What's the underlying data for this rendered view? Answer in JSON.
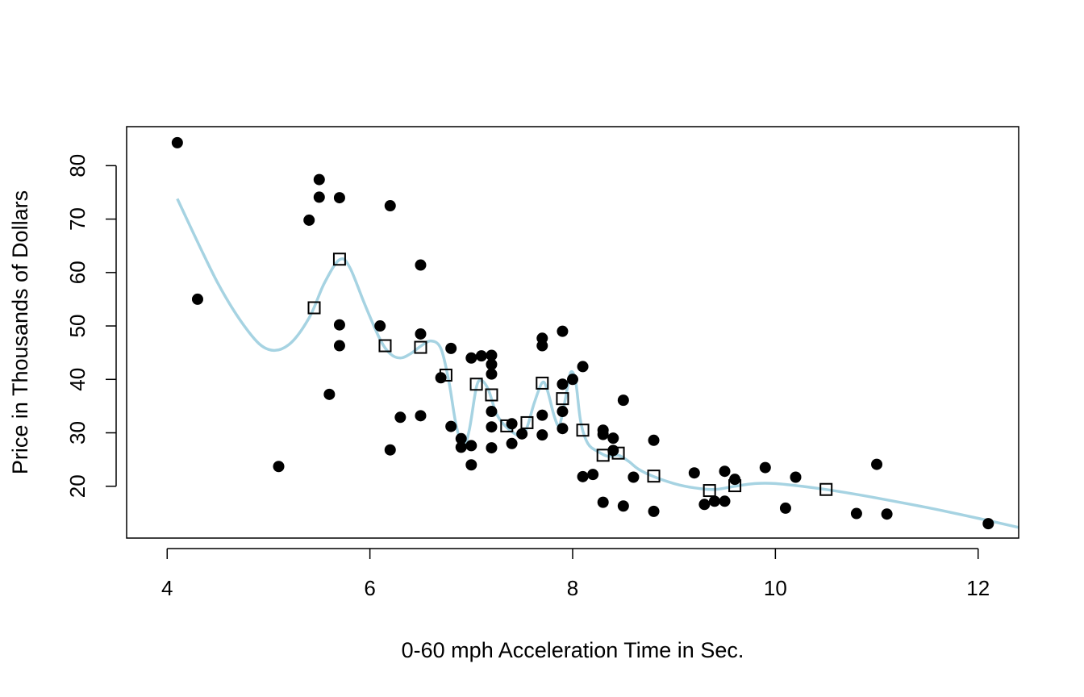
{
  "chart_data": {
    "type": "scatter",
    "xlabel": "0-60 mph Acceleration Time in Sec.",
    "ylabel": "Price in Thousands of Dollars",
    "xlim": [
      3.6,
      12.4
    ],
    "ylim": [
      10.3,
      87.3
    ],
    "x_ticks": [
      4,
      6,
      8,
      10,
      12
    ],
    "y_ticks": [
      20,
      30,
      40,
      50,
      60,
      70,
      80
    ],
    "grid": false,
    "colors": {
      "points": "#000000",
      "curve": "#a6d3e2",
      "box": "#000000"
    },
    "series": [
      {
        "marker": "filled-circle",
        "points": [
          [
            4.1,
            84.3
          ],
          [
            4.3,
            55.0
          ],
          [
            5.1,
            23.7
          ],
          [
            5.4,
            69.8
          ],
          [
            5.5,
            77.4
          ],
          [
            5.5,
            74.1
          ],
          [
            5.6,
            37.2
          ],
          [
            5.7,
            74.0
          ],
          [
            5.7,
            50.2
          ],
          [
            5.7,
            46.3
          ],
          [
            6.1,
            50.0
          ],
          [
            6.2,
            72.5
          ],
          [
            6.2,
            26.8
          ],
          [
            6.3,
            32.9
          ],
          [
            6.5,
            61.4
          ],
          [
            6.5,
            48.5
          ],
          [
            6.5,
            33.2
          ],
          [
            6.7,
            40.3
          ],
          [
            6.8,
            45.8
          ],
          [
            6.8,
            31.2
          ],
          [
            6.9,
            28.9
          ],
          [
            6.9,
            27.3
          ],
          [
            7.0,
            44.0
          ],
          [
            7.0,
            27.6
          ],
          [
            7.0,
            24.0
          ],
          [
            7.1,
            44.4
          ],
          [
            7.2,
            44.5
          ],
          [
            7.2,
            42.8
          ],
          [
            7.2,
            41.0
          ],
          [
            7.2,
            34.0
          ],
          [
            7.2,
            31.1
          ],
          [
            7.2,
            27.2
          ],
          [
            7.4,
            31.7
          ],
          [
            7.4,
            28.0
          ],
          [
            7.5,
            29.8
          ],
          [
            7.7,
            47.7
          ],
          [
            7.7,
            46.3
          ],
          [
            7.7,
            33.3
          ],
          [
            7.7,
            29.6
          ],
          [
            7.9,
            49.0
          ],
          [
            7.9,
            39.1
          ],
          [
            7.9,
            34.0
          ],
          [
            7.9,
            30.8
          ],
          [
            8.0,
            40.0
          ],
          [
            8.1,
            42.4
          ],
          [
            8.1,
            21.8
          ],
          [
            8.2,
            22.2
          ],
          [
            8.3,
            30.5
          ],
          [
            8.3,
            29.7
          ],
          [
            8.3,
            17.0
          ],
          [
            8.4,
            29.0
          ],
          [
            8.4,
            26.7
          ],
          [
            8.5,
            36.1
          ],
          [
            8.5,
            16.3
          ],
          [
            8.6,
            21.7
          ],
          [
            8.8,
            28.6
          ],
          [
            8.8,
            15.3
          ],
          [
            9.2,
            22.5
          ],
          [
            9.3,
            16.6
          ],
          [
            9.4,
            17.2
          ],
          [
            9.5,
            22.8
          ],
          [
            9.5,
            17.2
          ],
          [
            9.6,
            21.3
          ],
          [
            9.9,
            23.5
          ],
          [
            10.1,
            15.9
          ],
          [
            10.2,
            21.7
          ],
          [
            10.8,
            14.9
          ],
          [
            11.0,
            24.1
          ],
          [
            11.1,
            14.8
          ],
          [
            12.1,
            13.0
          ]
        ]
      },
      {
        "marker": "open-square",
        "points": [
          [
            5.45,
            53.4
          ],
          [
            5.7,
            62.5
          ],
          [
            6.15,
            46.3
          ],
          [
            6.5,
            46.0
          ],
          [
            6.75,
            40.8
          ],
          [
            7.05,
            39.1
          ],
          [
            7.2,
            37.1
          ],
          [
            7.35,
            31.3
          ],
          [
            7.55,
            31.9
          ],
          [
            7.7,
            39.3
          ],
          [
            7.9,
            36.4
          ],
          [
            8.1,
            30.5
          ],
          [
            8.3,
            25.8
          ],
          [
            8.45,
            26.2
          ],
          [
            8.8,
            21.9
          ],
          [
            9.35,
            19.2
          ],
          [
            9.6,
            20.1
          ],
          [
            10.5,
            19.4
          ]
        ]
      },
      {
        "marker": "line",
        "points": [
          [
            4.1,
            73.8
          ],
          [
            4.5,
            58.0
          ],
          [
            4.8,
            49.0
          ],
          [
            5.0,
            45.6
          ],
          [
            5.2,
            46.5
          ],
          [
            5.4,
            51.5
          ],
          [
            5.55,
            58.0
          ],
          [
            5.7,
            62.4
          ],
          [
            5.8,
            61.0
          ],
          [
            5.95,
            54.0
          ],
          [
            6.1,
            47.5
          ],
          [
            6.2,
            44.8
          ],
          [
            6.3,
            44.0
          ],
          [
            6.4,
            44.8
          ],
          [
            6.5,
            46.2
          ],
          [
            6.6,
            47.2
          ],
          [
            6.7,
            45.8
          ],
          [
            6.78,
            39.5
          ],
          [
            6.85,
            31.5
          ],
          [
            6.92,
            27.5
          ],
          [
            6.98,
            30.5
          ],
          [
            7.05,
            38.5
          ],
          [
            7.1,
            39.8
          ],
          [
            7.17,
            38.0
          ],
          [
            7.25,
            33.5
          ],
          [
            7.35,
            31.0
          ],
          [
            7.45,
            29.6
          ],
          [
            7.5,
            29.4
          ],
          [
            7.55,
            31.0
          ],
          [
            7.62,
            35.5
          ],
          [
            7.7,
            39.4
          ],
          [
            7.75,
            38.0
          ],
          [
            7.82,
            33.0
          ],
          [
            7.87,
            31.5
          ],
          [
            7.93,
            36.5
          ],
          [
            7.98,
            41.3
          ],
          [
            8.03,
            39.5
          ],
          [
            8.08,
            32.0
          ],
          [
            8.15,
            28.0
          ],
          [
            8.25,
            26.5
          ],
          [
            8.35,
            25.6
          ],
          [
            8.45,
            25.8
          ],
          [
            8.55,
            24.7
          ],
          [
            8.65,
            23.2
          ],
          [
            8.8,
            21.8
          ],
          [
            9.0,
            20.5
          ],
          [
            9.2,
            19.7
          ],
          [
            9.4,
            19.4
          ],
          [
            9.6,
            20.0
          ],
          [
            9.8,
            20.5
          ],
          [
            10.0,
            20.5
          ],
          [
            10.3,
            19.9
          ],
          [
            10.6,
            19.1
          ],
          [
            11.0,
            17.8
          ],
          [
            11.5,
            16.0
          ],
          [
            12.0,
            14.0
          ],
          [
            12.4,
            12.3
          ]
        ]
      }
    ]
  }
}
